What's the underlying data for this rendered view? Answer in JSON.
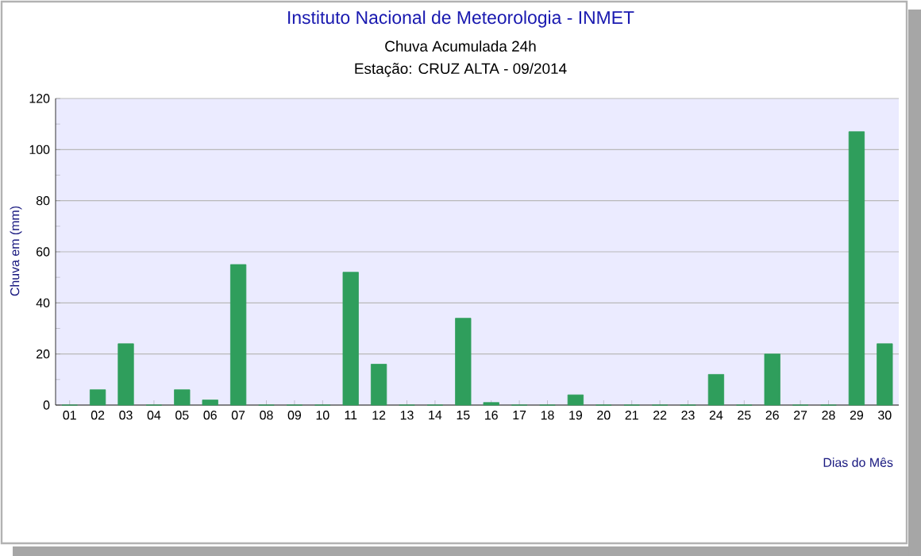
{
  "chart_data": {
    "type": "bar",
    "title": "Instituto Nacional de Meteorologia - INMET",
    "subtitle": "Chuva Acumulada 24h",
    "annotations": [
      "Estação: CRUZ ALTA - 09/2014"
    ],
    "xlabel": "Dias do Mês",
    "ylabel": "Chuva em (mm)",
    "categories": [
      "01",
      "02",
      "03",
      "04",
      "05",
      "06",
      "07",
      "08",
      "09",
      "10",
      "11",
      "12",
      "13",
      "14",
      "15",
      "16",
      "17",
      "18",
      "19",
      "20",
      "21",
      "22",
      "23",
      "24",
      "25",
      "26",
      "27",
      "28",
      "29",
      "30"
    ],
    "values": [
      0,
      6,
      24,
      0,
      6,
      2,
      55,
      0,
      0,
      0,
      52,
      16,
      0,
      0,
      34,
      1,
      0,
      0,
      4,
      0,
      0,
      0,
      0,
      12,
      0,
      20,
      0,
      0,
      107,
      24
    ],
    "color": "#2f9e5c",
    "ylim": [
      0,
      120
    ],
    "yticks": [
      0,
      20,
      40,
      60,
      80,
      100,
      120
    ],
    "grid": "y"
  }
}
